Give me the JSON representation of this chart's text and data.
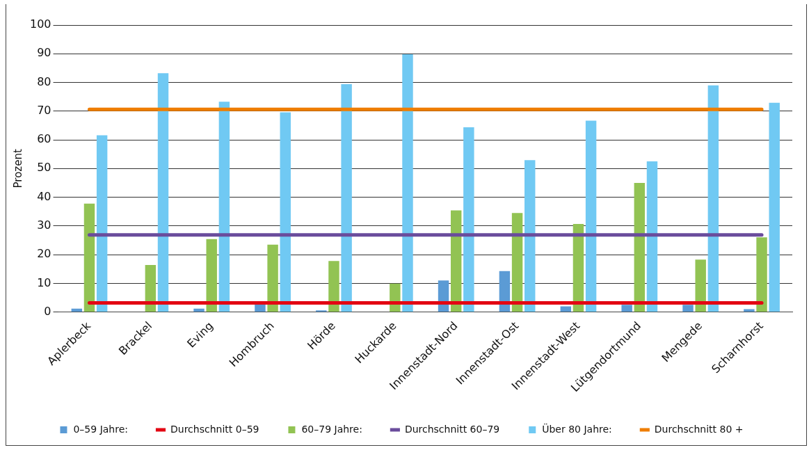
{
  "chart_data": {
    "type": "bar",
    "ylabel": "Prozent",
    "categories": [
      "Aplerbeck",
      "Brackel",
      "Eving",
      "Hombruch",
      "Hörde",
      "Huckarde",
      "Innenstadt-Nord",
      "Innenstadt-Ost",
      "Innenstadt-West",
      "Lütgendortmund",
      "Mengede",
      "Scharnhorst"
    ],
    "series": [
      {
        "name": "0–59 Jahre:",
        "color": "#5b9bd5",
        "values": [
          1.2,
          0,
          1.2,
          2.7,
          0.6,
          0,
          11,
          14.3,
          2,
          2.5,
          2.5,
          1
        ]
      },
      {
        "name": "60–79 Jahre:",
        "color": "#92c353",
        "values": [
          37.8,
          16.4,
          25.4,
          23.5,
          17.8,
          9.9,
          35.4,
          34.5,
          30.7,
          45,
          18.3,
          26
        ]
      },
      {
        "name": "Über 80 Jahre:",
        "color": "#70c9f3",
        "values": [
          61.6,
          83.2,
          73.3,
          69.6,
          79.4,
          89.8,
          64.4,
          52.9,
          66.7,
          52.5,
          79,
          72.9
        ]
      }
    ],
    "ref_lines": [
      {
        "axis": "y",
        "value": 3.2,
        "label": "Durchschnitt 0–59",
        "color": "#e30613"
      },
      {
        "axis": "y",
        "value": 26.9,
        "label": "Durchschnitt 60–79",
        "color": "#6a4c9c"
      },
      {
        "axis": "y",
        "value": 70.6,
        "label": "Durchschnitt 80 +",
        "color": "#ee7d00"
      }
    ],
    "ylim": [
      0,
      100
    ],
    "yticks": [
      0,
      10,
      20,
      30,
      40,
      50,
      60,
      70,
      80,
      90,
      100
    ],
    "grid": "y",
    "legend": "bottom"
  }
}
